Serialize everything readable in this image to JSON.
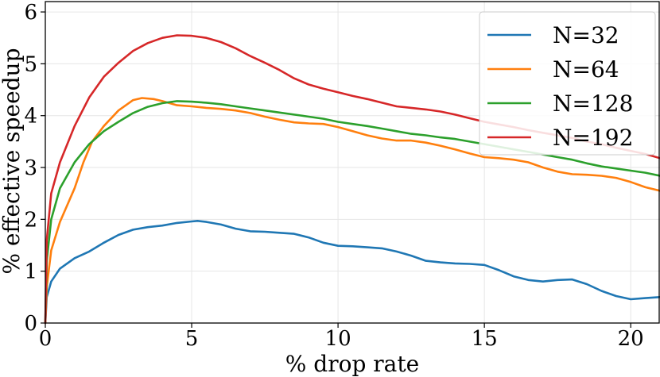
{
  "chart_data": {
    "type": "line",
    "title": "",
    "xlabel": "% drop rate",
    "ylabel": "% effective speedup",
    "xlim": [
      0,
      21
    ],
    "ylim": [
      0,
      6.2
    ],
    "xticks": [
      0,
      5,
      10,
      15,
      20
    ],
    "yticks": [
      0,
      1,
      2,
      3,
      4,
      5,
      6
    ],
    "grid": true,
    "legend_position": "top-right",
    "series": [
      {
        "name": "N=32",
        "color": "#1f77b4",
        "points": [
          [
            0,
            0
          ],
          [
            0.05,
            0.5
          ],
          [
            0.2,
            0.8
          ],
          [
            0.5,
            1.05
          ],
          [
            1,
            1.25
          ],
          [
            1.5,
            1.38
          ],
          [
            2,
            1.55
          ],
          [
            2.5,
            1.7
          ],
          [
            3,
            1.8
          ],
          [
            3.5,
            1.85
          ],
          [
            4,
            1.88
          ],
          [
            4.5,
            1.93
          ],
          [
            5,
            1.96
          ],
          [
            5.2,
            1.97
          ],
          [
            5.5,
            1.95
          ],
          [
            6,
            1.9
          ],
          [
            6.5,
            1.82
          ],
          [
            7,
            1.77
          ],
          [
            7.5,
            1.76
          ],
          [
            8,
            1.74
          ],
          [
            8.5,
            1.72
          ],
          [
            9,
            1.65
          ],
          [
            9.5,
            1.55
          ],
          [
            10,
            1.49
          ],
          [
            10.5,
            1.48
          ],
          [
            11,
            1.46
          ],
          [
            11.5,
            1.44
          ],
          [
            12,
            1.38
          ],
          [
            12.5,
            1.3
          ],
          [
            13,
            1.2
          ],
          [
            13.5,
            1.17
          ],
          [
            14,
            1.15
          ],
          [
            14.5,
            1.14
          ],
          [
            15,
            1.12
          ],
          [
            15.5,
            1.02
          ],
          [
            16,
            0.9
          ],
          [
            16.5,
            0.83
          ],
          [
            17,
            0.8
          ],
          [
            17.5,
            0.83
          ],
          [
            18,
            0.84
          ],
          [
            18.5,
            0.75
          ],
          [
            19,
            0.62
          ],
          [
            19.5,
            0.52
          ],
          [
            20,
            0.46
          ],
          [
            20.5,
            0.48
          ],
          [
            21,
            0.5
          ]
        ]
      },
      {
        "name": "N=64",
        "color": "#ff7f0e",
        "points": [
          [
            0,
            0
          ],
          [
            0.05,
            0.7
          ],
          [
            0.2,
            1.4
          ],
          [
            0.5,
            1.95
          ],
          [
            1,
            2.6
          ],
          [
            1.3,
            3.1
          ],
          [
            1.6,
            3.5
          ],
          [
            2,
            3.8
          ],
          [
            2.5,
            4.1
          ],
          [
            3,
            4.3
          ],
          [
            3.3,
            4.34
          ],
          [
            3.7,
            4.32
          ],
          [
            4,
            4.28
          ],
          [
            4.5,
            4.2
          ],
          [
            5,
            4.18
          ],
          [
            5.5,
            4.15
          ],
          [
            6,
            4.13
          ],
          [
            6.5,
            4.1
          ],
          [
            7,
            4.05
          ],
          [
            7.5,
            3.98
          ],
          [
            8,
            3.92
          ],
          [
            8.5,
            3.87
          ],
          [
            9,
            3.85
          ],
          [
            9.5,
            3.84
          ],
          [
            10,
            3.78
          ],
          [
            10.5,
            3.7
          ],
          [
            11,
            3.62
          ],
          [
            11.5,
            3.56
          ],
          [
            12,
            3.52
          ],
          [
            12.5,
            3.52
          ],
          [
            13,
            3.48
          ],
          [
            13.5,
            3.42
          ],
          [
            14,
            3.35
          ],
          [
            14.5,
            3.27
          ],
          [
            15,
            3.2
          ],
          [
            15.5,
            3.18
          ],
          [
            16,
            3.15
          ],
          [
            16.5,
            3.1
          ],
          [
            17,
            3.0
          ],
          [
            17.5,
            2.92
          ],
          [
            18,
            2.87
          ],
          [
            18.5,
            2.86
          ],
          [
            19,
            2.84
          ],
          [
            19.5,
            2.8
          ],
          [
            20,
            2.72
          ],
          [
            20.5,
            2.62
          ],
          [
            21,
            2.55
          ]
        ]
      },
      {
        "name": "N=128",
        "color": "#2ca02c",
        "points": [
          [
            0,
            0
          ],
          [
            0.05,
            1.2
          ],
          [
            0.2,
            2.0
          ],
          [
            0.5,
            2.6
          ],
          [
            1,
            3.1
          ],
          [
            1.5,
            3.45
          ],
          [
            2,
            3.7
          ],
          [
            2.5,
            3.88
          ],
          [
            3,
            4.05
          ],
          [
            3.5,
            4.17
          ],
          [
            4,
            4.24
          ],
          [
            4.5,
            4.28
          ],
          [
            5,
            4.27
          ],
          [
            5.5,
            4.25
          ],
          [
            6,
            4.22
          ],
          [
            6.5,
            4.18
          ],
          [
            7,
            4.14
          ],
          [
            7.5,
            4.1
          ],
          [
            8,
            4.06
          ],
          [
            8.5,
            4.02
          ],
          [
            9,
            3.98
          ],
          [
            9.5,
            3.94
          ],
          [
            10,
            3.88
          ],
          [
            10.5,
            3.84
          ],
          [
            11,
            3.8
          ],
          [
            11.5,
            3.75
          ],
          [
            12,
            3.7
          ],
          [
            12.5,
            3.65
          ],
          [
            13,
            3.62
          ],
          [
            13.5,
            3.58
          ],
          [
            14,
            3.55
          ],
          [
            14.5,
            3.5
          ],
          [
            15,
            3.45
          ],
          [
            15.5,
            3.4
          ],
          [
            16,
            3.35
          ],
          [
            16.5,
            3.3
          ],
          [
            17,
            3.25
          ],
          [
            17.5,
            3.2
          ],
          [
            18,
            3.15
          ],
          [
            18.5,
            3.08
          ],
          [
            19,
            3.02
          ],
          [
            19.5,
            2.98
          ],
          [
            20,
            2.94
          ],
          [
            20.5,
            2.9
          ],
          [
            21,
            2.84
          ]
        ]
      },
      {
        "name": "N=192",
        "color": "#d62728",
        "points": [
          [
            0,
            0
          ],
          [
            0.05,
            1.6
          ],
          [
            0.2,
            2.5
          ],
          [
            0.5,
            3.1
          ],
          [
            1,
            3.8
          ],
          [
            1.5,
            4.35
          ],
          [
            2,
            4.75
          ],
          [
            2.5,
            5.02
          ],
          [
            3,
            5.25
          ],
          [
            3.5,
            5.4
          ],
          [
            4,
            5.5
          ],
          [
            4.5,
            5.55
          ],
          [
            5,
            5.54
          ],
          [
            5.5,
            5.5
          ],
          [
            6,
            5.42
          ],
          [
            6.5,
            5.3
          ],
          [
            7,
            5.15
          ],
          [
            7.5,
            5.02
          ],
          [
            8,
            4.88
          ],
          [
            8.5,
            4.72
          ],
          [
            9,
            4.6
          ],
          [
            9.5,
            4.52
          ],
          [
            10,
            4.45
          ],
          [
            10.5,
            4.38
          ],
          [
            11,
            4.32
          ],
          [
            11.5,
            4.25
          ],
          [
            12,
            4.18
          ],
          [
            12.5,
            4.15
          ],
          [
            13,
            4.12
          ],
          [
            13.5,
            4.08
          ],
          [
            14,
            4.02
          ],
          [
            14.5,
            3.95
          ],
          [
            15,
            3.88
          ],
          [
            15.5,
            3.83
          ],
          [
            16,
            3.78
          ],
          [
            16.5,
            3.72
          ],
          [
            17,
            3.67
          ],
          [
            17.5,
            3.62
          ],
          [
            18,
            3.57
          ],
          [
            18.5,
            3.5
          ],
          [
            19,
            3.45
          ],
          [
            19.5,
            3.38
          ],
          [
            20,
            3.32
          ],
          [
            20.5,
            3.26
          ],
          [
            21,
            3.18
          ]
        ]
      }
    ]
  }
}
